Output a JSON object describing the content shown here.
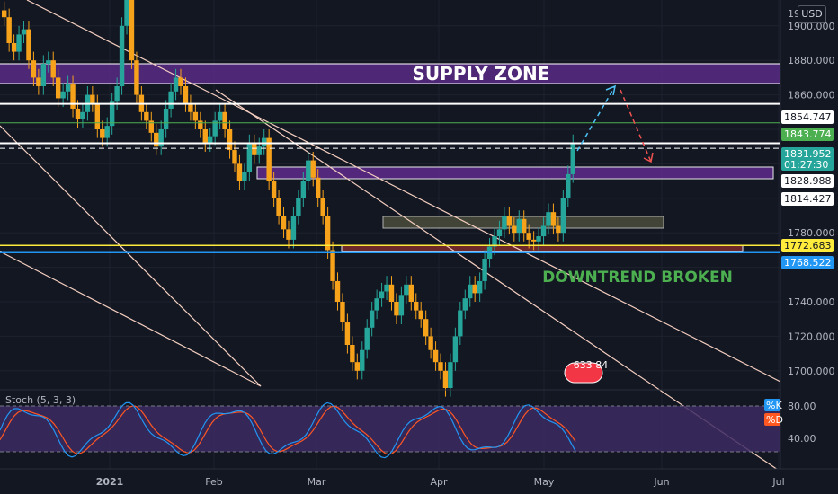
{
  "header": {
    "currency": "USD"
  },
  "price_axis": {
    "labels": [
      "1900.000",
      "1880.000",
      "1860.000",
      "1780.000",
      "1740.000",
      "1720.000",
      "1700.000"
    ],
    "top_partial": "19",
    "badges": [
      {
        "text": "1854.747",
        "bg": "#ffffff",
        "fg": "#131722"
      },
      {
        "text": "1843.774",
        "bg": "#4caf50",
        "fg": "#ffffff"
      },
      {
        "text": "1831.952",
        "bg": "#26a69a",
        "fg": "#ffffff",
        "sub": "01:27:30"
      },
      {
        "text": "1828.988",
        "bg": "#ffffff",
        "fg": "#131722"
      },
      {
        "text": "1814.427",
        "bg": "#ffffff",
        "fg": "#131722"
      },
      {
        "text": "1772.683",
        "bg": "#ffeb3b",
        "fg": "#131722"
      },
      {
        "text": "1768.522",
        "bg": "#2196f3",
        "fg": "#ffffff"
      }
    ]
  },
  "time_axis": {
    "labels": [
      "2021",
      "Feb",
      "Mar",
      "Apr",
      "May",
      "Jun",
      "Jul"
    ]
  },
  "annotations": {
    "supply_zone": "SUPPLY ZONE",
    "downtrend": "DOWNTREND BROKEN",
    "event_value": "633 84"
  },
  "indicator": {
    "name": "Stoch (5, 3, 3)",
    "k_label": "%K",
    "d_label": "%D",
    "levels": [
      "80.00",
      "40.00"
    ],
    "k_color": "#2196f3",
    "d_color": "#ff5722"
  },
  "colors": {
    "up": "#26a69a",
    "down": "#f7a21b",
    "supply": "#5b2a86",
    "bg": "#131722"
  },
  "chart_data": {
    "type": "candlestick",
    "title": "",
    "ylim": [
      1690,
      1915
    ],
    "lines": [
      {
        "label": "1854.747",
        "color": "#ffffff"
      },
      {
        "label": "1843.774",
        "color": "#4caf50"
      },
      {
        "label": "1831.952",
        "color": "#ffffff"
      },
      {
        "label": "1828.988",
        "color": "#ffffff"
      },
      {
        "label": "1772.683",
        "color": "#ffeb3b"
      },
      {
        "label": "1768.522",
        "color": "#2196f3"
      }
    ],
    "closes": [
      1905,
      1890,
      1885,
      1895,
      1898,
      1880,
      1870,
      1865,
      1878,
      1880,
      1870,
      1858,
      1862,
      1866,
      1852,
      1846,
      1850,
      1860,
      1855,
      1840,
      1835,
      1842,
      1856,
      1865,
      1900,
      1915,
      1880,
      1860,
      1850,
      1845,
      1838,
      1830,
      1840,
      1852,
      1862,
      1870,
      1865,
      1855,
      1850,
      1845,
      1840,
      1832,
      1836,
      1845,
      1850,
      1840,
      1828,
      1820,
      1810,
      1815,
      1832,
      1825,
      1830,
      1835,
      1810,
      1800,
      1790,
      1782,
      1776,
      1790,
      1800,
      1810,
      1822,
      1812,
      1800,
      1790,
      1770,
      1752,
      1740,
      1728,
      1715,
      1705,
      1700,
      1712,
      1725,
      1735,
      1742,
      1746,
      1750,
      1740,
      1732,
      1744,
      1750,
      1740,
      1735,
      1730,
      1720,
      1712,
      1705,
      1700,
      1690,
      1705,
      1720,
      1735,
      1742,
      1750,
      1745,
      1752,
      1765,
      1772,
      1778,
      1782,
      1790,
      1784,
      1780,
      1788,
      1780,
      1776,
      1775,
      1778,
      1784,
      1792,
      1784,
      1780,
      1800,
      1814,
      1832
    ]
  }
}
